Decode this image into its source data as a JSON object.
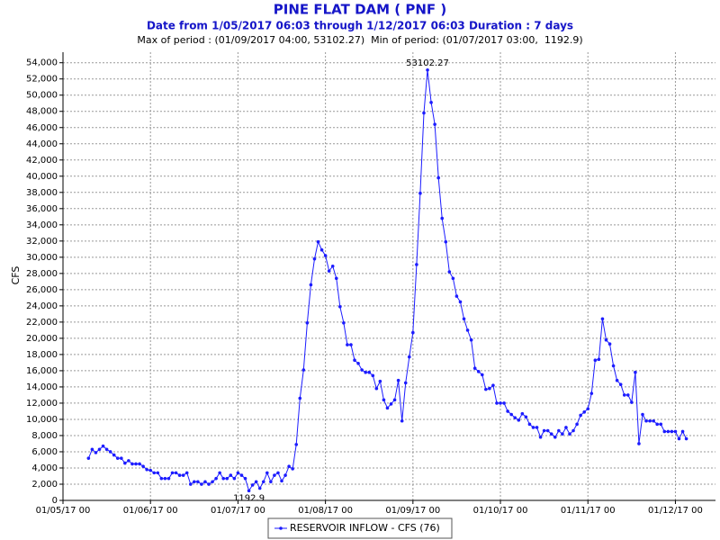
{
  "chart_data": {
    "type": "line",
    "title": "PINE FLAT DAM ( PNF )",
    "subtitle": "Date from 1/05/2017 06:03 through 1/12/2017 06:03 Duration : 7 days",
    "period_summary": "Max of period : (01/09/2017 04:00, 53102.27)  Min of period: (01/07/2017 03:00,  1192.9)",
    "ylabel": "CFS",
    "grid": true,
    "legend": "bottom",
    "xlim": [
      "2017-01-05T00:00",
      "2017-01-12T11:00"
    ],
    "xticks": [
      {
        "value": "2017-01-05T00:00",
        "label": "01/05/17 00"
      },
      {
        "value": "2017-01-06T00:00",
        "label": "01/06/17 00"
      },
      {
        "value": "2017-01-07T00:00",
        "label": "01/07/17 00"
      },
      {
        "value": "2017-01-08T00:00",
        "label": "01/08/17 00"
      },
      {
        "value": "2017-01-09T00:00",
        "label": "01/09/17 00"
      },
      {
        "value": "2017-01-10T00:00",
        "label": "01/10/17 00"
      },
      {
        "value": "2017-01-11T00:00",
        "label": "01/11/17 00"
      },
      {
        "value": "2017-01-12T00:00",
        "label": "01/12/17 00"
      }
    ],
    "ylim": [
      0,
      55300
    ],
    "yticks": [
      0,
      {
        "value": 2000,
        "label": "2,000"
      },
      {
        "value": 4000,
        "label": "4,000"
      },
      {
        "value": 6000,
        "label": "6,000"
      },
      {
        "value": 8000,
        "label": "8,000"
      },
      {
        "value": 10000,
        "label": "10,000"
      },
      {
        "value": 12000,
        "label": "12,000"
      },
      {
        "value": 14000,
        "label": "14,000"
      },
      {
        "value": 16000,
        "label": "16,000"
      },
      {
        "value": 18000,
        "label": "18,000"
      },
      {
        "value": 20000,
        "label": "20,000"
      },
      {
        "value": 22000,
        "label": "22,000"
      },
      {
        "value": 24000,
        "label": "24,000"
      },
      {
        "value": 26000,
        "label": "26,000"
      },
      {
        "value": 28000,
        "label": "28,000"
      },
      {
        "value": 30000,
        "label": "30,000"
      },
      {
        "value": 32000,
        "label": "32,000"
      },
      {
        "value": 34000,
        "label": "34,000"
      },
      {
        "value": 36000,
        "label": "36,000"
      },
      {
        "value": 38000,
        "label": "38,000"
      },
      {
        "value": 40000,
        "label": "40,000"
      },
      {
        "value": 42000,
        "label": "42,000"
      },
      {
        "value": 44000,
        "label": "44,000"
      },
      {
        "value": 46000,
        "label": "46,000"
      },
      {
        "value": 48000,
        "label": "48,000"
      },
      {
        "value": 50000,
        "label": "50,000"
      },
      {
        "value": 52000,
        "label": "52,000"
      },
      {
        "value": 54000,
        "label": "54,000"
      }
    ],
    "x": [
      "2017-01-05T07:00",
      "2017-01-05T08:00",
      "2017-01-05T09:00",
      "2017-01-05T10:00",
      "2017-01-05T11:00",
      "2017-01-05T12:00",
      "2017-01-05T13:00",
      "2017-01-05T14:00",
      "2017-01-05T15:00",
      "2017-01-05T16:00",
      "2017-01-05T17:00",
      "2017-01-05T18:00",
      "2017-01-05T19:00",
      "2017-01-05T20:00",
      "2017-01-05T21:00",
      "2017-01-05T22:00",
      "2017-01-05T23:00",
      "2017-01-06T00:00",
      "2017-01-06T01:00",
      "2017-01-06T02:00",
      "2017-01-06T03:00",
      "2017-01-06T04:00",
      "2017-01-06T05:00",
      "2017-01-06T06:00",
      "2017-01-06T07:00",
      "2017-01-06T08:00",
      "2017-01-06T09:00",
      "2017-01-06T10:00",
      "2017-01-06T11:00",
      "2017-01-06T12:00",
      "2017-01-06T13:00",
      "2017-01-06T14:00",
      "2017-01-06T15:00",
      "2017-01-06T16:00",
      "2017-01-06T17:00",
      "2017-01-06T18:00",
      "2017-01-06T19:00",
      "2017-01-06T20:00",
      "2017-01-06T21:00",
      "2017-01-06T22:00",
      "2017-01-06T23:00",
      "2017-01-07T00:00",
      "2017-01-07T01:00",
      "2017-01-07T02:00",
      "2017-01-07T03:00",
      "2017-01-07T04:00",
      "2017-01-07T05:00",
      "2017-01-07T06:00",
      "2017-01-07T07:00",
      "2017-01-07T08:00",
      "2017-01-07T09:00",
      "2017-01-07T10:00",
      "2017-01-07T11:00",
      "2017-01-07T12:00",
      "2017-01-07T13:00",
      "2017-01-07T14:00",
      "2017-01-07T15:00",
      "2017-01-07T16:00",
      "2017-01-07T17:00",
      "2017-01-07T18:00",
      "2017-01-07T19:00",
      "2017-01-07T20:00",
      "2017-01-07T21:00",
      "2017-01-07T22:00",
      "2017-01-07T23:00",
      "2017-01-08T00:00",
      "2017-01-08T01:00",
      "2017-01-08T02:00",
      "2017-01-08T03:00",
      "2017-01-08T04:00",
      "2017-01-08T05:00",
      "2017-01-08T06:00",
      "2017-01-08T07:00",
      "2017-01-08T08:00",
      "2017-01-08T09:00",
      "2017-01-08T10:00",
      "2017-01-08T11:00",
      "2017-01-08T12:00",
      "2017-01-08T13:00",
      "2017-01-08T14:00",
      "2017-01-08T15:00",
      "2017-01-08T16:00",
      "2017-01-08T17:00",
      "2017-01-08T18:00",
      "2017-01-08T19:00",
      "2017-01-08T20:00",
      "2017-01-08T21:00",
      "2017-01-08T22:00",
      "2017-01-08T23:00",
      "2017-01-09T00:00",
      "2017-01-09T01:00",
      "2017-01-09T02:00",
      "2017-01-09T03:00",
      "2017-01-09T04:00",
      "2017-01-09T05:00",
      "2017-01-09T06:00",
      "2017-01-09T07:00",
      "2017-01-09T08:00",
      "2017-01-09T09:00",
      "2017-01-09T10:00",
      "2017-01-09T11:00",
      "2017-01-09T12:00",
      "2017-01-09T13:00",
      "2017-01-09T14:00",
      "2017-01-09T15:00",
      "2017-01-09T16:00",
      "2017-01-09T17:00",
      "2017-01-09T18:00",
      "2017-01-09T19:00",
      "2017-01-09T20:00",
      "2017-01-09T21:00",
      "2017-01-09T22:00",
      "2017-01-09T23:00",
      "2017-01-10T00:00",
      "2017-01-10T01:00",
      "2017-01-10T02:00",
      "2017-01-10T03:00",
      "2017-01-10T04:00",
      "2017-01-10T05:00",
      "2017-01-10T06:00",
      "2017-01-10T07:00",
      "2017-01-10T08:00",
      "2017-01-10T09:00",
      "2017-01-10T10:00",
      "2017-01-10T11:00",
      "2017-01-10T12:00",
      "2017-01-10T13:00",
      "2017-01-10T14:00",
      "2017-01-10T15:00",
      "2017-01-10T16:00",
      "2017-01-10T17:00",
      "2017-01-10T18:00",
      "2017-01-10T19:00",
      "2017-01-10T20:00",
      "2017-01-10T21:00",
      "2017-01-10T22:00",
      "2017-01-10T23:00",
      "2017-01-11T00:00",
      "2017-01-11T01:00",
      "2017-01-11T02:00",
      "2017-01-11T03:00",
      "2017-01-11T04:00",
      "2017-01-11T05:00",
      "2017-01-11T06:00",
      "2017-01-11T07:00",
      "2017-01-11T08:00",
      "2017-01-11T09:00",
      "2017-01-11T10:00",
      "2017-01-11T11:00",
      "2017-01-11T12:00",
      "2017-01-11T13:00",
      "2017-01-11T14:00",
      "2017-01-11T15:00",
      "2017-01-11T16:00",
      "2017-01-11T17:00",
      "2017-01-11T18:00",
      "2017-01-11T19:00",
      "2017-01-11T20:00",
      "2017-01-11T21:00",
      "2017-01-11T22:00",
      "2017-01-11T23:00",
      "2017-01-12T00:00",
      "2017-01-12T01:00",
      "2017-01-12T02:00",
      "2017-01-12T03:00"
    ],
    "series": [
      {
        "name": "RESERVOIR INFLOW - CFS (76)",
        "color": "#1c1cff",
        "values": [
          5200,
          6300,
          5900,
          6300,
          6700,
          6300,
          6000,
          5600,
          5200,
          5200,
          4600,
          4900,
          4500,
          4500,
          4500,
          4200,
          3800,
          3700,
          3400,
          3400,
          2700,
          2700,
          2700,
          3400,
          3400,
          3100,
          3100,
          3400,
          2000,
          2300,
          2300,
          2000,
          2300,
          2000,
          2300,
          2700,
          3400,
          2700,
          2700,
          3100,
          2700,
          3400,
          3100,
          2700,
          1192.9,
          1900,
          2300,
          1500,
          2300,
          3400,
          2300,
          3100,
          3400,
          2400,
          3100,
          4200,
          3900,
          6900,
          12600,
          16100,
          21900,
          26600,
          29800,
          31900,
          30900,
          30200,
          28300,
          28900,
          27400,
          23900,
          21900,
          19200,
          19200,
          17300,
          16900,
          16100,
          15800,
          15800,
          15400,
          13800,
          14700,
          12400,
          11400,
          11900,
          12400,
          14800,
          9800,
          14500,
          17700,
          20700,
          29100,
          37900,
          47800,
          53102.27,
          49100,
          46400,
          39800,
          34800,
          31900,
          28200,
          27400,
          25200,
          24500,
          22400,
          21000,
          19800,
          16300,
          15900,
          15500,
          13700,
          13800,
          14200,
          12000,
          12000,
          12000,
          11000,
          10600,
          10200,
          9900,
          10700,
          10300,
          9400,
          9000,
          9000,
          7800,
          8600,
          8600,
          8200,
          7800,
          8600,
          8200,
          9000,
          8200,
          8600,
          9400,
          10500,
          10900,
          11300,
          13200,
          17300,
          17400,
          22400,
          19800,
          19300,
          16600,
          14800,
          14300,
          13000,
          13000,
          12100,
          15800,
          7000,
          10600,
          9800,
          9800,
          9800,
          9400,
          9400,
          8500,
          8500,
          8500,
          8500,
          7600,
          8500,
          7600
        ]
      }
    ]
  }
}
